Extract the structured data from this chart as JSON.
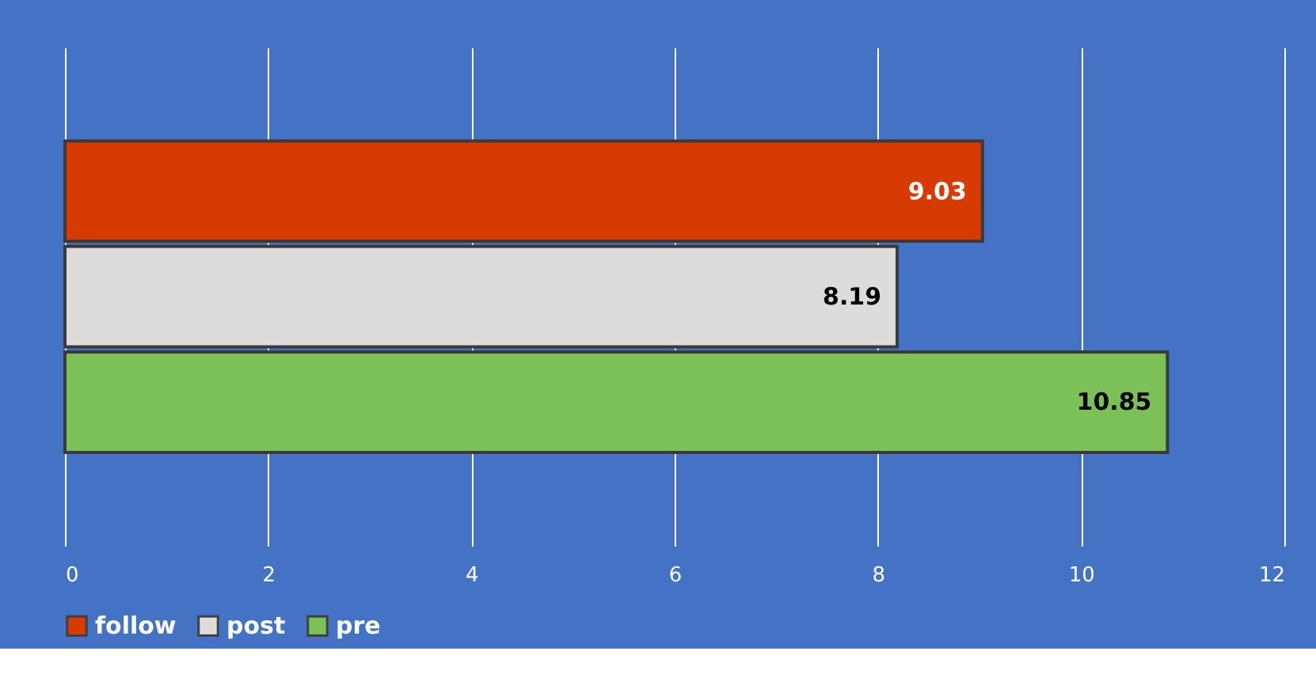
{
  "chart_data": {
    "type": "bar",
    "orientation": "horizontal",
    "categories": [
      null
    ],
    "series": [
      {
        "name": "follow",
        "color": "#d83b01",
        "values": [
          9.03
        ]
      },
      {
        "name": "post",
        "color": "#dedbdb",
        "values": [
          8.19
        ]
      },
      {
        "name": "pre",
        "color": "#7cc157",
        "values": [
          10.85
        ]
      }
    ],
    "xlim": [
      0,
      12
    ],
    "xticks": [
      0,
      2,
      4,
      6,
      8,
      10,
      12
    ],
    "grid": "x",
    "legend": "bottom",
    "data_labels": true,
    "tick_labels": "x"
  }
}
